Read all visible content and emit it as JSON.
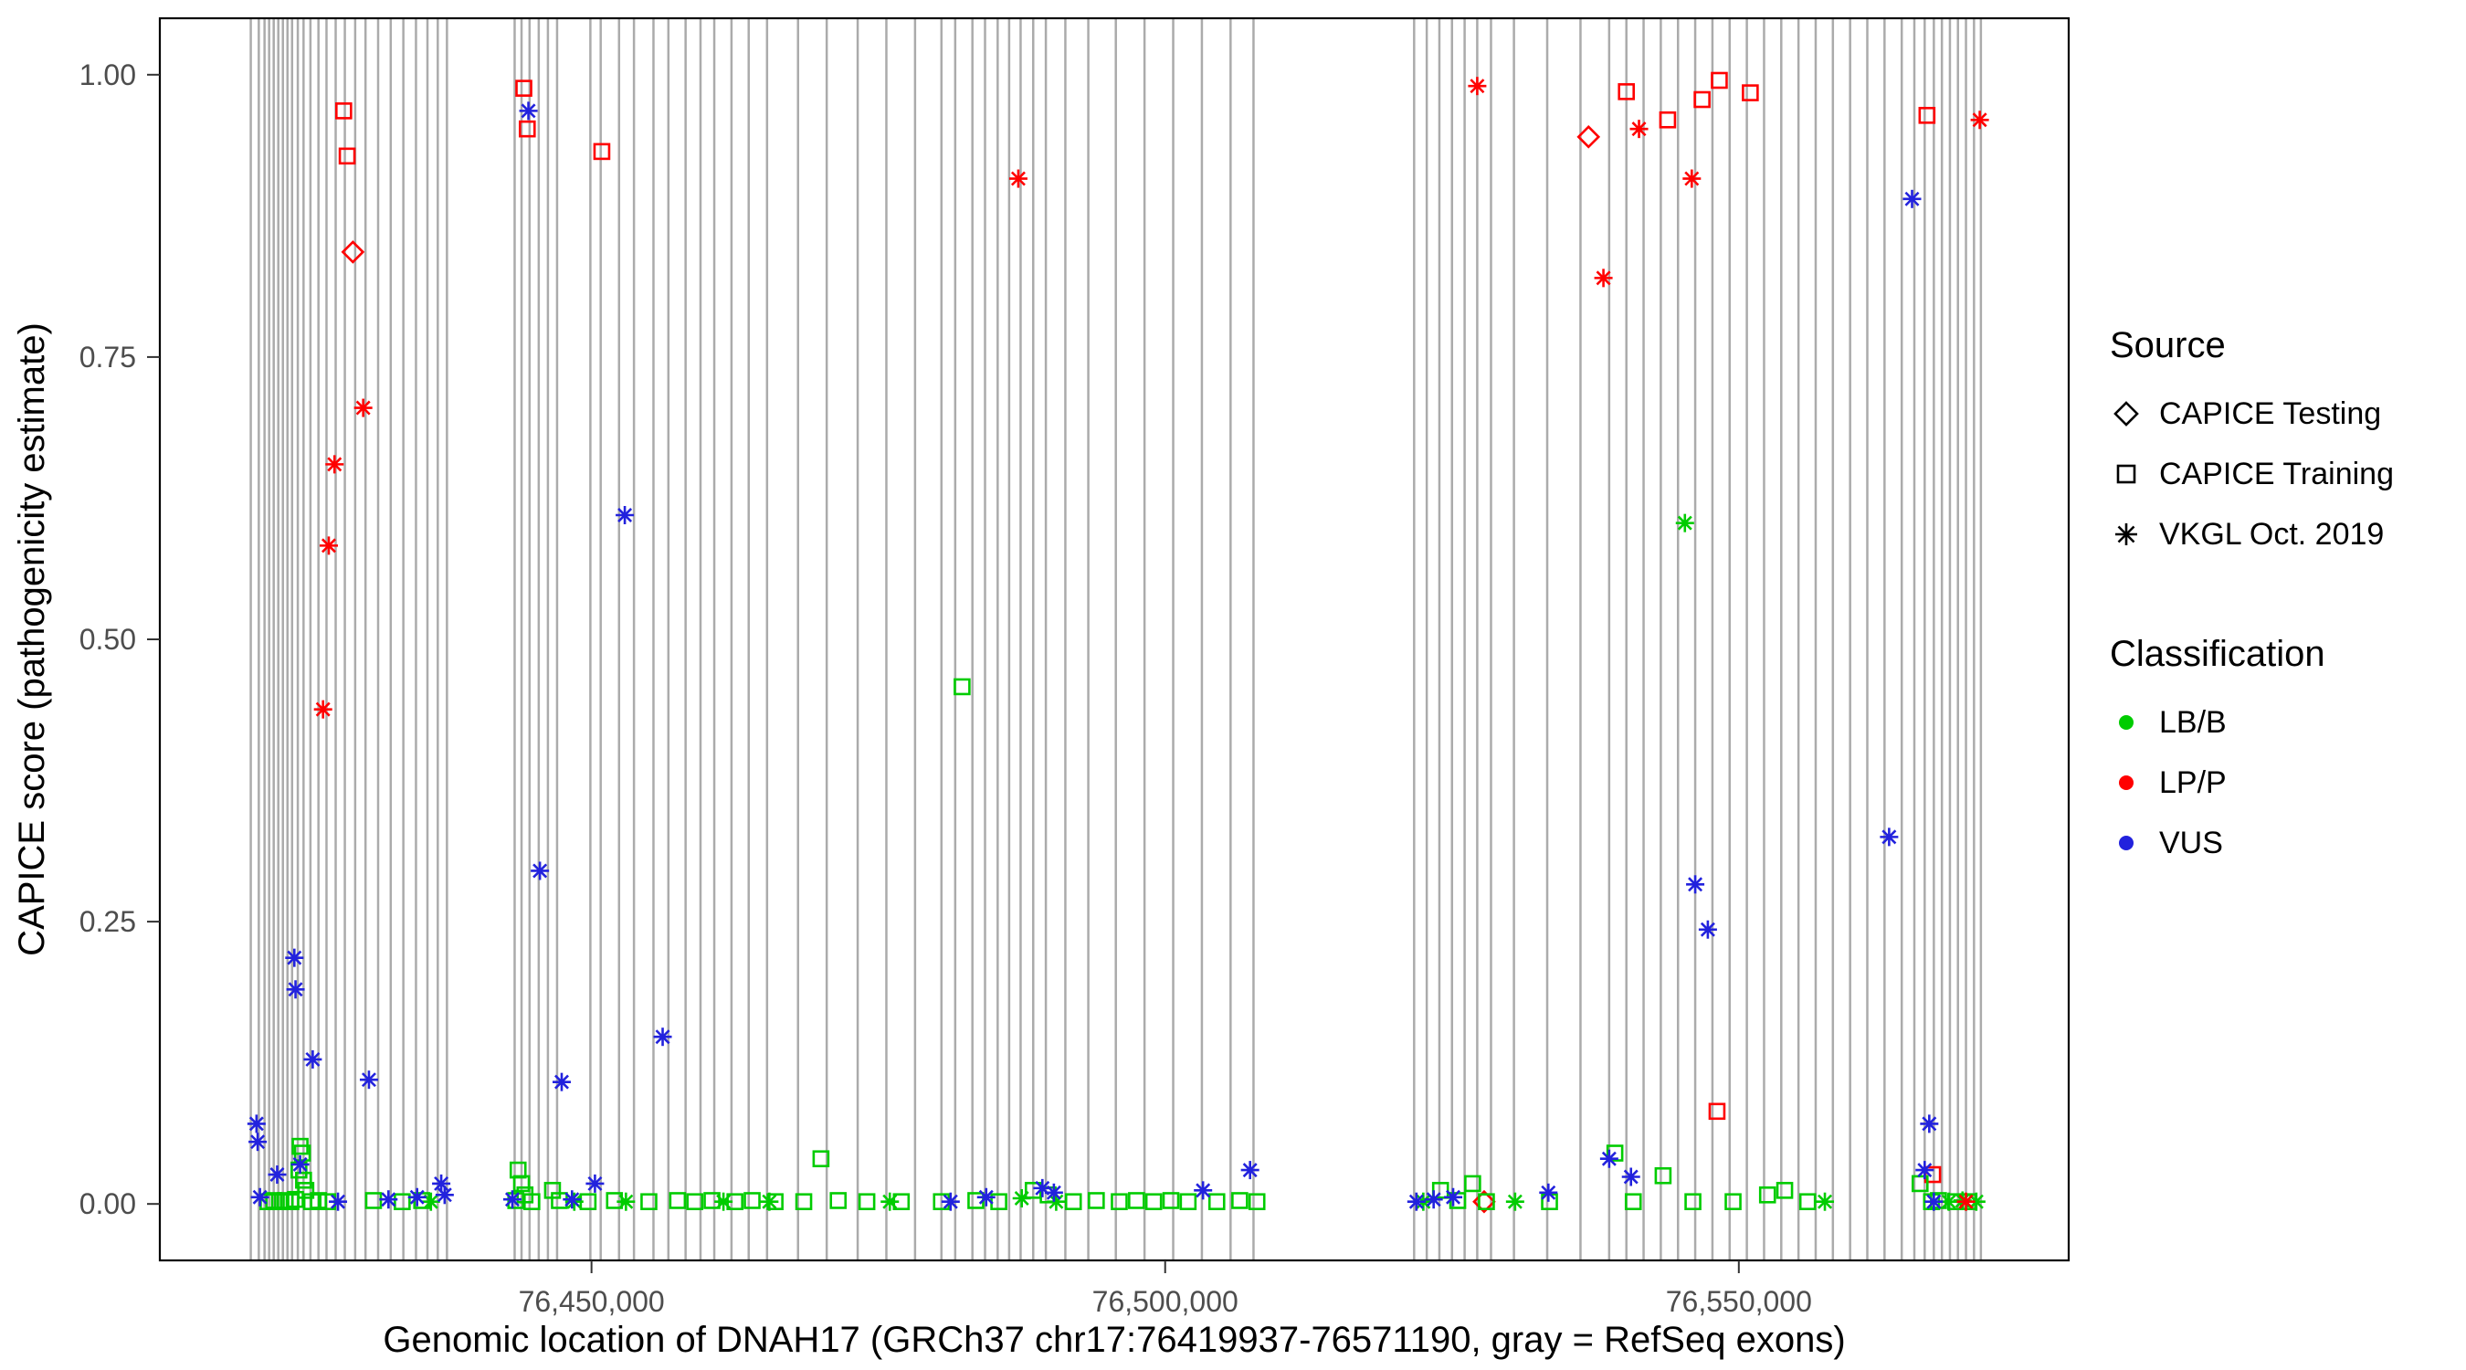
{
  "chart_data": {
    "type": "scatter",
    "title": "",
    "xlabel": "Genomic location of DNAH17 (GRCh37 chr17:76419937-76571190, gray = RefSeq exons)",
    "ylabel": "CAPICE score (pathogenicity estimate)",
    "xlim": [
      76412374,
      76578753
    ],
    "ylim": [
      0,
      1
    ],
    "grid": false,
    "legend_position": "right",
    "x_ticks": [
      {
        "value": 76450000,
        "label": "76,450,000"
      },
      {
        "value": 76500000,
        "label": "76,500,000"
      },
      {
        "value": 76550000,
        "label": "76,550,000"
      }
    ],
    "y_ticks": [
      {
        "value": 0.0,
        "label": "0.00"
      },
      {
        "value": 0.25,
        "label": "0.25"
      },
      {
        "value": 0.5,
        "label": "0.50"
      },
      {
        "value": 0.75,
        "label": "0.75"
      },
      {
        "value": 1.0,
        "label": "1.00"
      }
    ],
    "exon_color": "#ABABAB",
    "exons": [
      76420300,
      76421000,
      76421500,
      76421900,
      76422300,
      76422700,
      76423100,
      76423500,
      76423900,
      76424400,
      76424900,
      76425500,
      76426200,
      76426900,
      76427700,
      76428500,
      76429400,
      76430300,
      76431400,
      76432500,
      76433600,
      76434700,
      76435700,
      76436600,
      76437400,
      76443300,
      76443900,
      76444600,
      76445400,
      76446200,
      76447000,
      76449900,
      76450800,
      76452400,
      76453700,
      76455400,
      76456700,
      76458200,
      76459500,
      76460700,
      76462200,
      76463700,
      76465300,
      76468000,
      76470500,
      76473200,
      76475700,
      76478200,
      76480500,
      76481700,
      76483200,
      76484300,
      76485400,
      76486400,
      76487400,
      76488500,
      76489600,
      76491300,
      76493300,
      76495700,
      76498200,
      76500700,
      76503200,
      76505700,
      76507700,
      76521700,
      76522800,
      76523900,
      76525000,
      76526100,
      76527200,
      76528400,
      76530400,
      76533300,
      76536200,
      76538700,
      76540200,
      76541700,
      76543200,
      76544700,
      76546200,
      76547700,
      76549200,
      76550700,
      76552200,
      76553700,
      76555200,
      76556700,
      76558200,
      76559700,
      76561200,
      76562700,
      76564200,
      76565300,
      76566200,
      76567000,
      76567700,
      76568400,
      76569100,
      76569800,
      76570500,
      76571100
    ],
    "series": [
      {
        "name": "CAPICE Testing / LP/P",
        "source": "CAPICE Testing",
        "classification": "LP/P",
        "shape": "diamond",
        "color": "#FF0000",
        "points": [
          [
            76429200,
            0.843
          ],
          [
            76536900,
            0.945
          ],
          [
            76527800,
            0.002
          ]
        ]
      },
      {
        "name": "CAPICE Training / LP/P",
        "source": "CAPICE Training",
        "classification": "LP/P",
        "shape": "square",
        "color": "#FF0000",
        "points": [
          [
            76428400,
            0.968
          ],
          [
            76428700,
            0.928
          ],
          [
            76444100,
            0.988
          ],
          [
            76444400,
            0.952
          ],
          [
            76450900,
            0.932
          ],
          [
            76540200,
            0.985
          ],
          [
            76543800,
            0.96
          ],
          [
            76546800,
            0.978
          ],
          [
            76548300,
            0.995
          ],
          [
            76551000,
            0.984
          ],
          [
            76566400,
            0.964
          ],
          [
            76548100,
            0.082
          ],
          [
            76566900,
            0.026
          ]
        ]
      },
      {
        "name": "CAPICE Training / LB/B",
        "source": "CAPICE Training",
        "classification": "LB/B",
        "shape": "square",
        "color": "#00CC00",
        "points": [
          [
            76421800,
            0.002
          ],
          [
            76422300,
            0.003
          ],
          [
            76422800,
            0.002
          ],
          [
            76423300,
            0.003
          ],
          [
            76423800,
            0.002
          ],
          [
            76424200,
            0.004
          ],
          [
            76424500,
            0.03
          ],
          [
            76424600,
            0.051
          ],
          [
            76424800,
            0.045
          ],
          [
            76424900,
            0.021
          ],
          [
            76425100,
            0.012
          ],
          [
            76425600,
            0.002
          ],
          [
            76426200,
            0.003
          ],
          [
            76427000,
            0.002
          ],
          [
            76431000,
            0.003
          ],
          [
            76433500,
            0.002
          ],
          [
            76435200,
            0.003
          ],
          [
            76443400,
            0.003
          ],
          [
            76443600,
            0.03
          ],
          [
            76443900,
            0.018
          ],
          [
            76444200,
            0.008
          ],
          [
            76444800,
            0.002
          ],
          [
            76446600,
            0.012
          ],
          [
            76447200,
            0.003
          ],
          [
            76449700,
            0.002
          ],
          [
            76452000,
            0.003
          ],
          [
            76455000,
            0.002
          ],
          [
            76457500,
            0.003
          ],
          [
            76459000,
            0.002
          ],
          [
            76460500,
            0.003
          ],
          [
            76462500,
            0.002
          ],
          [
            76464000,
            0.003
          ],
          [
            76466000,
            0.002
          ],
          [
            76468500,
            0.002
          ],
          [
            76470000,
            0.04
          ],
          [
            76471500,
            0.003
          ],
          [
            76474000,
            0.002
          ],
          [
            76477000,
            0.002
          ],
          [
            76480500,
            0.002
          ],
          [
            76482300,
            0.458
          ],
          [
            76483500,
            0.003
          ],
          [
            76485500,
            0.002
          ],
          [
            76488500,
            0.012
          ],
          [
            76489800,
            0.008
          ],
          [
            76492000,
            0.002
          ],
          [
            76494000,
            0.003
          ],
          [
            76496000,
            0.002
          ],
          [
            76497500,
            0.003
          ],
          [
            76499000,
            0.002
          ],
          [
            76500500,
            0.003
          ],
          [
            76502000,
            0.002
          ],
          [
            76504500,
            0.002
          ],
          [
            76506500,
            0.003
          ],
          [
            76508000,
            0.002
          ],
          [
            76524000,
            0.012
          ],
          [
            76525500,
            0.003
          ],
          [
            76526800,
            0.018
          ],
          [
            76528000,
            0.002
          ],
          [
            76533500,
            0.002
          ],
          [
            76539200,
            0.045
          ],
          [
            76540800,
            0.002
          ],
          [
            76543400,
            0.025
          ],
          [
            76546000,
            0.002
          ],
          [
            76549500,
            0.002
          ],
          [
            76552500,
            0.008
          ],
          [
            76554000,
            0.012
          ],
          [
            76556000,
            0.002
          ],
          [
            76565800,
            0.018
          ],
          [
            76566800,
            0.002
          ],
          [
            76567400,
            0.003
          ],
          [
            76568900,
            0.002
          ],
          [
            76570000,
            0.002
          ]
        ]
      },
      {
        "name": "VKGL Oct. 2019 / LB/B",
        "source": "VKGL Oct. 2019",
        "classification": "LB/B",
        "shape": "asterisk",
        "color": "#00CC00",
        "points": [
          [
            76436000,
            0.002
          ],
          [
            76448500,
            0.002
          ],
          [
            76453000,
            0.002
          ],
          [
            76461500,
            0.002
          ],
          [
            76465500,
            0.002
          ],
          [
            76476000,
            0.002
          ],
          [
            76487500,
            0.005
          ],
          [
            76490500,
            0.002
          ],
          [
            76522500,
            0.002
          ],
          [
            76530500,
            0.002
          ],
          [
            76545300,
            0.603
          ],
          [
            76557500,
            0.002
          ],
          [
            76568300,
            0.002
          ],
          [
            76569500,
            0.003
          ],
          [
            76570700,
            0.002
          ]
        ]
      },
      {
        "name": "VKGL Oct. 2019 / LP/P",
        "source": "VKGL Oct. 2019",
        "classification": "LP/P",
        "shape": "asterisk",
        "color": "#FF0000",
        "points": [
          [
            76426600,
            0.438
          ],
          [
            76427100,
            0.583
          ],
          [
            76427600,
            0.655
          ],
          [
            76430100,
            0.705
          ],
          [
            76487200,
            0.908
          ],
          [
            76527200,
            0.99
          ],
          [
            76538200,
            0.82
          ],
          [
            76541300,
            0.952
          ],
          [
            76545900,
            0.908
          ],
          [
            76569800,
            0.002
          ],
          [
            76571000,
            0.96
          ]
        ]
      },
      {
        "name": "VKGL Oct. 2019 / VUS",
        "source": "VKGL Oct. 2019",
        "classification": "VUS",
        "shape": "asterisk",
        "color": "#2222DD",
        "points": [
          [
            76420800,
            0.071
          ],
          [
            76420900,
            0.055
          ],
          [
            76421100,
            0.006
          ],
          [
            76422600,
            0.026
          ],
          [
            76424100,
            0.218
          ],
          [
            76424200,
            0.19
          ],
          [
            76424600,
            0.035
          ],
          [
            76425700,
            0.128
          ],
          [
            76427900,
            0.002
          ],
          [
            76430600,
            0.11
          ],
          [
            76432300,
            0.004
          ],
          [
            76434800,
            0.006
          ],
          [
            76436900,
            0.018
          ],
          [
            76437200,
            0.008
          ],
          [
            76443100,
            0.004
          ],
          [
            76444500,
            0.968
          ],
          [
            76445500,
            0.295
          ],
          [
            76447400,
            0.108
          ],
          [
            76448300,
            0.004
          ],
          [
            76450300,
            0.018
          ],
          [
            76452900,
            0.61
          ],
          [
            76456200,
            0.148
          ],
          [
            76481300,
            0.002
          ],
          [
            76484400,
            0.006
          ],
          [
            76489300,
            0.014
          ],
          [
            76490300,
            0.01
          ],
          [
            76503300,
            0.012
          ],
          [
            76507400,
            0.03
          ],
          [
            76521900,
            0.002
          ],
          [
            76523400,
            0.004
          ],
          [
            76525100,
            0.006
          ],
          [
            76533400,
            0.01
          ],
          [
            76538700,
            0.04
          ],
          [
            76540600,
            0.024
          ],
          [
            76546200,
            0.283
          ],
          [
            76547300,
            0.243
          ],
          [
            76563100,
            0.325
          ],
          [
            76565100,
            0.89
          ],
          [
            76566200,
            0.03
          ],
          [
            76566600,
            0.071
          ],
          [
            76567000,
            0.002
          ]
        ]
      }
    ],
    "legend": {
      "source_title": "Source",
      "source_items": [
        {
          "label": "CAPICE Testing",
          "shape": "diamond"
        },
        {
          "label": "CAPICE Training",
          "shape": "square"
        },
        {
          "label": "VKGL Oct. 2019",
          "shape": "asterisk"
        }
      ],
      "classification_title": "Classification",
      "classification_items": [
        {
          "label": "LB/B",
          "color": "#00CC00"
        },
        {
          "label": "LP/P",
          "color": "#FF0000"
        },
        {
          "label": "VUS",
          "color": "#2222DD"
        }
      ]
    }
  }
}
